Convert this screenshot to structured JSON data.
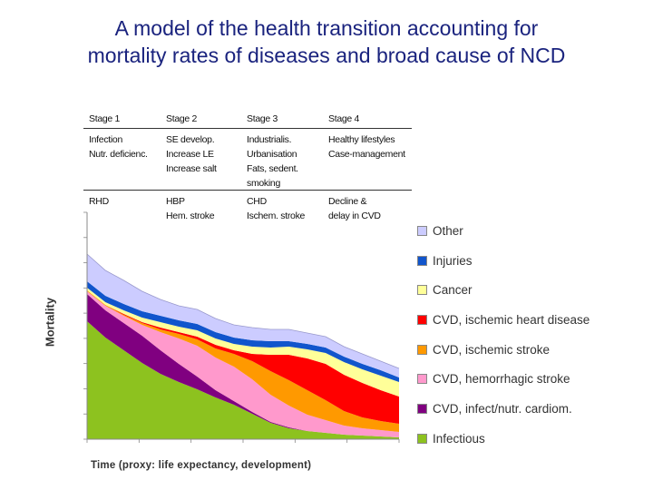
{
  "title_line1": "A model of the health transition accounting for",
  "title_line2": "mortality rates of diseases and broad cause of NCD",
  "stages": {
    "headers": [
      "Stage 1",
      "Stage 2",
      "Stage 3",
      "Stage 4"
    ],
    "drivers": [
      "Infection\nNutr. deficienc.",
      "SE develop.\nIncrease LE\nIncrease salt",
      "Industrialis.\nUrbanisation\nFats, sedent.\nsmoking",
      "Healthy lifestyles\nCase-management"
    ],
    "outcomes": [
      "RHD",
      "HBP\nHem. stroke",
      "CHD\nIschem. stroke",
      "Decline &\ndelay in CVD"
    ]
  },
  "chart_data": {
    "type": "area",
    "stacked": true,
    "title": "A model of the health transition accounting for mortality rates of diseases and broad cause of NCD",
    "xlabel": "Time   (proxy: life expectancy, development)",
    "ylabel": "Mortality",
    "x": [
      0,
      1,
      2,
      3,
      4,
      5,
      6,
      7,
      8,
      9,
      10,
      11,
      12,
      13,
      14,
      15,
      16,
      17
    ],
    "xlim": [
      0,
      17
    ],
    "ylim": [
      0,
      250
    ],
    "legend_position": "right",
    "series": [
      {
        "name": "Infectious",
        "color": "#8dc21f",
        "values": [
          130,
          112,
          98,
          84,
          72,
          63,
          55,
          46,
          38,
          28,
          18,
          12,
          9,
          7,
          5,
          4,
          3,
          2
        ]
      },
      {
        "name": "CVD, infect/nutr. cardiom.",
        "color": "#800080",
        "values": [
          30,
          30,
          30,
          30,
          26,
          20,
          14,
          8,
          4,
          2,
          1,
          1,
          0,
          0,
          0,
          0,
          0,
          0
        ]
      },
      {
        "name": "CVD, hemorrhagic stroke",
        "color": "#ff99cc",
        "values": [
          3,
          5,
          8,
          12,
          20,
          28,
          34,
          36,
          38,
          36,
          30,
          24,
          18,
          14,
          10,
          8,
          7,
          6
        ]
      },
      {
        "name": "CVD, ischemic stroke",
        "color": "#ff9900",
        "values": [
          1,
          1,
          1,
          2,
          3,
          5,
          7,
          10,
          14,
          20,
          26,
          28,
          27,
          22,
          16,
          12,
          10,
          9
        ]
      },
      {
        "name": "CVD, ischemic heart disease",
        "color": "#ff0000",
        "values": [
          0,
          0,
          1,
          1,
          2,
          2,
          3,
          4,
          4,
          8,
          18,
          28,
          35,
          40,
          40,
          38,
          34,
          30
        ]
      },
      {
        "name": "Cancer",
        "color": "#ffff99",
        "values": [
          3,
          3,
          4,
          5,
          6,
          6,
          7,
          7,
          7,
          8,
          8,
          9,
          10,
          12,
          14,
          15,
          16,
          16
        ]
      },
      {
        "name": "Injuries",
        "color": "#1155cc",
        "values": [
          7,
          7,
          7,
          7,
          7,
          7,
          7,
          7,
          7,
          7,
          7,
          6,
          6,
          6,
          6,
          6,
          6,
          5
        ]
      },
      {
        "name": "Other",
        "color": "#ccccff",
        "values": [
          30,
          28,
          26,
          22,
          18,
          16,
          16,
          15,
          14,
          14,
          13,
          13,
          12,
          12,
          11,
          11,
          10,
          10
        ]
      }
    ]
  }
}
